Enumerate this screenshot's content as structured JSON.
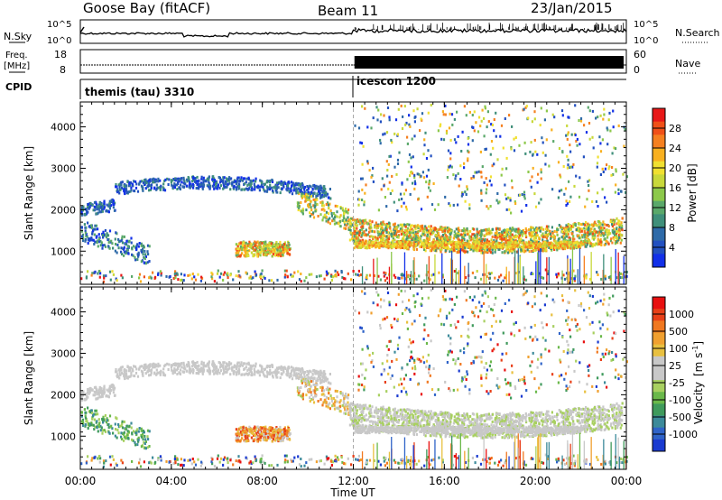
{
  "header": {
    "site": "Goose Bay (fitACF)",
    "beam": "Beam 11",
    "date": "23/Jan/2015"
  },
  "strip_nsky": {
    "left_label": "N.Sky",
    "right_label": "N.Search",
    "left_ticks": [
      "10^5",
      "10^0"
    ],
    "right_ticks": [
      "10^5",
      "10^0"
    ]
  },
  "strip_freq": {
    "left_label": "Freq.",
    "left_unit": "[MHz]",
    "right_label": "Nave",
    "left_ticks": [
      "18",
      "8"
    ],
    "right_ticks": [
      "60",
      "0"
    ]
  },
  "cpid": {
    "label": "CPID",
    "segments": [
      {
        "name": "themis (tau) 3310",
        "start_hour": 0
      },
      {
        "name": "icescon 1200",
        "start_hour": 12
      }
    ]
  },
  "chart_data": [
    {
      "type": "heatmap",
      "panel": "power",
      "ylabel": "Slant Range [km]",
      "xlabel": "",
      "ylim": [
        200,
        4600
      ],
      "yticks": [
        "1000",
        "2000",
        "3000",
        "4000"
      ],
      "colorbar": {
        "label": "Power [dB]",
        "ticks": [
          "28",
          "24",
          "20",
          "16",
          "12",
          "8",
          "4"
        ],
        "colors": [
          "#1230e8",
          "#2250c0",
          "#2e6aa8",
          "#3f8f7a",
          "#5aa86a",
          "#8cc84a",
          "#c8d83a",
          "#f0e030",
          "#f8b020",
          "#f58020",
          "#f05018",
          "#e81818"
        ]
      }
    },
    {
      "type": "heatmap",
      "panel": "velocity",
      "ylabel": "Slant Range [km]",
      "xlabel": "Time UT",
      "ylim": [
        200,
        4600
      ],
      "yticks": [
        "1000",
        "2000",
        "3000",
        "4000"
      ],
      "xticks": [
        "00:00",
        "04:00",
        "08:00",
        "12:00",
        "16:00",
        "20:00",
        "00:00"
      ],
      "colorbar": {
        "label": "Velocity",
        "unit": "[m s",
        "unit_sup": "-1",
        "unit_close": "]",
        "ticks": [
          "1000",
          "500",
          "100",
          "25",
          "-25",
          "-100",
          "-500",
          "-1000"
        ],
        "colors": [
          "#1a3ad0",
          "#2f63c8",
          "#3c8a9a",
          "#3f9a5c",
          "#6ab84a",
          "#a8d060",
          "#c8c8c8",
          "#c8c8c8",
          "#e8c040",
          "#f0a030",
          "#f07820",
          "#e84018",
          "#e81010"
        ]
      }
    }
  ]
}
